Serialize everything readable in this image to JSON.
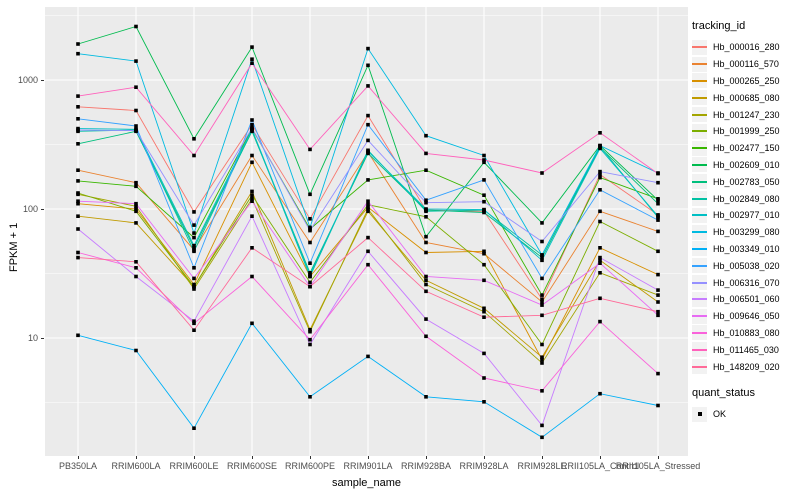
{
  "chart_data": {
    "type": "line",
    "xlabel": "sample_name",
    "ylabel": "FPKM + 1",
    "y_scale": "log10",
    "y_ticks": [
      10,
      100,
      1000
    ],
    "grid": true,
    "panel_bg": "#EBEBEB",
    "grid_color": "#FFFFFF",
    "point_color": "#000000",
    "point_shape": "square",
    "legend_title": "tracking_id",
    "legend2_title": "quant_status",
    "legend2_items": [
      {
        "label": "OK",
        "shape": "square",
        "color": "#000000"
      }
    ],
    "categories": [
      "PB350LA",
      "RRIM600LA",
      "RRIM600LE",
      "RRIM600SE",
      "RRIM600PE",
      "RRIM901LA",
      "RRIM928BA",
      "RRIM928LA",
      "RRIM928LE",
      "RRII105LA_Control",
      "RRII105LA_Stressed"
    ],
    "series": [
      {
        "name": "Hb_000016_280",
        "color": "#F8766D",
        "values": [
          620,
          580,
          95,
          450,
          84,
          530,
          98,
          96,
          20,
          185,
          90
        ]
      },
      {
        "name": "Hb_000116_570",
        "color": "#EA8331",
        "values": [
          200,
          160,
          48,
          260,
          55,
          275,
          55,
          45,
          19,
          96,
          67
        ]
      },
      {
        "name": "Hb_000265_250",
        "color": "#D89000",
        "values": [
          110,
          100,
          26,
          230,
          30,
          103,
          46,
          47,
          6.8,
          50,
          31
        ]
      },
      {
        "name": "Hb_000685_080",
        "color": "#C09B00",
        "values": [
          88,
          78,
          25,
          137,
          11.6,
          96,
          28,
          17,
          7.1,
          40,
          19
        ]
      },
      {
        "name": "Hb_001247_230",
        "color": "#A3A500",
        "values": [
          130,
          105,
          24,
          120,
          11.2,
          100,
          26,
          16,
          6.4,
          32,
          21.5
        ]
      },
      {
        "name": "Hb_001999_250",
        "color": "#7CAE00",
        "values": [
          133,
          96,
          25,
          128,
          27,
          108,
          87,
          37,
          8.9,
          80,
          47
        ]
      },
      {
        "name": "Hb_002477_150",
        "color": "#39B600",
        "values": [
          165,
          150,
          60,
          420,
          70,
          168,
          200,
          128,
          21.5,
          175,
          120
        ]
      },
      {
        "name": "Hb_002609_010",
        "color": "#00BB4E",
        "values": [
          1900,
          2600,
          350,
          1800,
          130,
          1300,
          61,
          230,
          78,
          310,
          117
        ]
      },
      {
        "name": "Hb_002783_050",
        "color": "#00BF7D",
        "values": [
          320,
          400,
          50,
          400,
          32,
          270,
          98,
          94,
          42,
          300,
          110
        ]
      },
      {
        "name": "Hb_002849_080",
        "color": "#00C1A3",
        "values": [
          400,
          410,
          47,
          410,
          30,
          285,
          96,
          98,
          44,
          305,
          86
        ]
      },
      {
        "name": "Hb_002977_010",
        "color": "#00BFC4",
        "values": [
          420,
          415,
          52,
          415,
          31,
          280,
          100,
          99,
          40,
          295,
          88
        ]
      },
      {
        "name": "Hb_003299_080",
        "color": "#00BAE0",
        "values": [
          1600,
          1400,
          65,
          1450,
          72,
          1750,
          370,
          260,
          44,
          310,
          190
        ]
      },
      {
        "name": "Hb_003349_010",
        "color": "#00B0F6",
        "values": [
          10.5,
          8,
          2,
          13,
          3.5,
          7.2,
          3.5,
          3.2,
          1.7,
          3.7,
          3
        ]
      },
      {
        "name": "Hb_005038_020",
        "color": "#35A2FF",
        "values": [
          500,
          440,
          35,
          490,
          38,
          450,
          117,
          168,
          29,
          141,
          82
        ]
      },
      {
        "name": "Hb_006316_070",
        "color": "#9590FF",
        "values": [
          410,
          405,
          75,
          425,
          68,
          340,
          112,
          114,
          56,
          195,
          160
        ]
      },
      {
        "name": "Hb_006501_060",
        "color": "#C77CFF",
        "values": [
          70,
          30,
          13.5,
          88,
          8.9,
          47,
          14,
          7.6,
          2.1,
          42,
          23.5
        ]
      },
      {
        "name": "Hb_009646_050",
        "color": "#E76BF3",
        "values": [
          115,
          110,
          29,
          115,
          25,
          115,
          30,
          28,
          18,
          38,
          15
        ]
      },
      {
        "name": "Hb_010883_080",
        "color": "#FA62DB",
        "values": [
          46,
          35,
          13,
          30,
          9.7,
          37,
          10.3,
          4.9,
          3.9,
          13.4,
          5.3
        ]
      },
      {
        "name": "Hb_011465_030",
        "color": "#FF62BC",
        "values": [
          750,
          880,
          260,
          1350,
          290,
          900,
          270,
          240,
          190,
          390,
          188
        ]
      },
      {
        "name": "Hb_148209_020",
        "color": "#FF6A98",
        "values": [
          42,
          39,
          11.5,
          50,
          25,
          60,
          23,
          14.5,
          15,
          20.3,
          16
        ]
      }
    ]
  }
}
